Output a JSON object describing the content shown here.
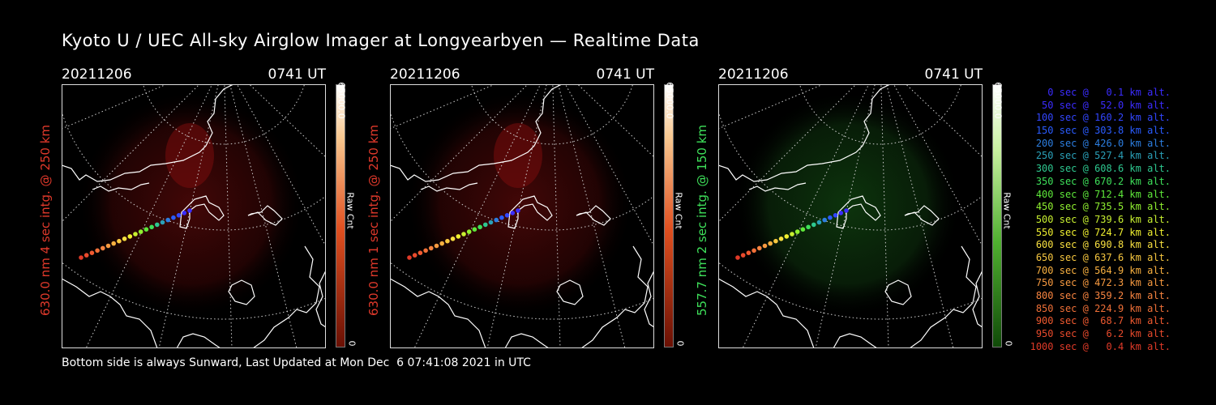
{
  "title": "Kyoto U / UEC All-sky Airglow Imager at Longyearbyen — Realtime Data",
  "footer": "Bottom side is always Sunward, Last Updated at Mon Dec  6 07:41:08 2021 in UTC",
  "panels": [
    {
      "date": "20211206",
      "time": "0741 UT",
      "label": "630.0 nm 4 sec intg. @ 250 km",
      "label_color": "#e0392b",
      "cbar_max": "65000.0",
      "cbar_min": "0",
      "cbar_unit": "Raw Cnt",
      "scheme": "red"
    },
    {
      "date": "20211206",
      "time": "0741 UT",
      "label": "630.0 nm 1 sec intg. @ 250 km",
      "label_color": "#e0392b",
      "cbar_max": "65000.0",
      "cbar_min": "0",
      "cbar_unit": "Raw Cnt",
      "scheme": "red"
    },
    {
      "date": "20211206",
      "time": "0741 UT",
      "label": "557.7 nm 2 sec intg. @ 150 km",
      "label_color": "#3ee05a",
      "cbar_max": "65000.0",
      "cbar_min": "0",
      "cbar_unit": "Raw Cnt",
      "scheme": "green"
    }
  ],
  "legend": [
    {
      "text": "0 sec @   0.1 km alt.",
      "color": "#3b2cff"
    },
    {
      "text": "50 sec @  52.0 km alt.",
      "color": "#3b2cff"
    },
    {
      "text": "100 sec @ 160.2 km alt.",
      "color": "#3246ff"
    },
    {
      "text": "150 sec @ 303.8 km alt.",
      "color": "#2a5cff"
    },
    {
      "text": "200 sec @ 426.0 km alt.",
      "color": "#2c7ee0"
    },
    {
      "text": "250 sec @ 527.4 km alt.",
      "color": "#2aa0b8"
    },
    {
      "text": "300 sec @ 608.6 km alt.",
      "color": "#2ec890"
    },
    {
      "text": "350 sec @ 670.2 km alt.",
      "color": "#3ee05a"
    },
    {
      "text": "400 sec @ 712.4 km alt.",
      "color": "#5ee83a"
    },
    {
      "text": "450 sec @ 735.5 km alt.",
      "color": "#90f030"
    },
    {
      "text": "500 sec @ 739.6 km alt.",
      "color": "#c8f030"
    },
    {
      "text": "550 sec @ 724.7 km alt.",
      "color": "#f0f030"
    },
    {
      "text": "600 sec @ 690.8 km alt.",
      "color": "#f8e040"
    },
    {
      "text": "650 sec @ 637.6 km alt.",
      "color": "#f8c840"
    },
    {
      "text": "700 sec @ 564.9 km alt.",
      "color": "#f8b040"
    },
    {
      "text": "750 sec @ 472.3 km alt.",
      "color": "#f89a40"
    },
    {
      "text": "800 sec @ 359.2 km alt.",
      "color": "#f88440"
    },
    {
      "text": "850 sec @ 224.9 km alt.",
      "color": "#f07038"
    },
    {
      "text": "900 sec @  68.7 km alt.",
      "color": "#f05a30"
    },
    {
      "text": "950 sec @   6.2 km alt.",
      "color": "#e84a2c"
    },
    {
      "text": "1000 sec @   0.4 km alt.",
      "color": "#e03a28"
    }
  ]
}
